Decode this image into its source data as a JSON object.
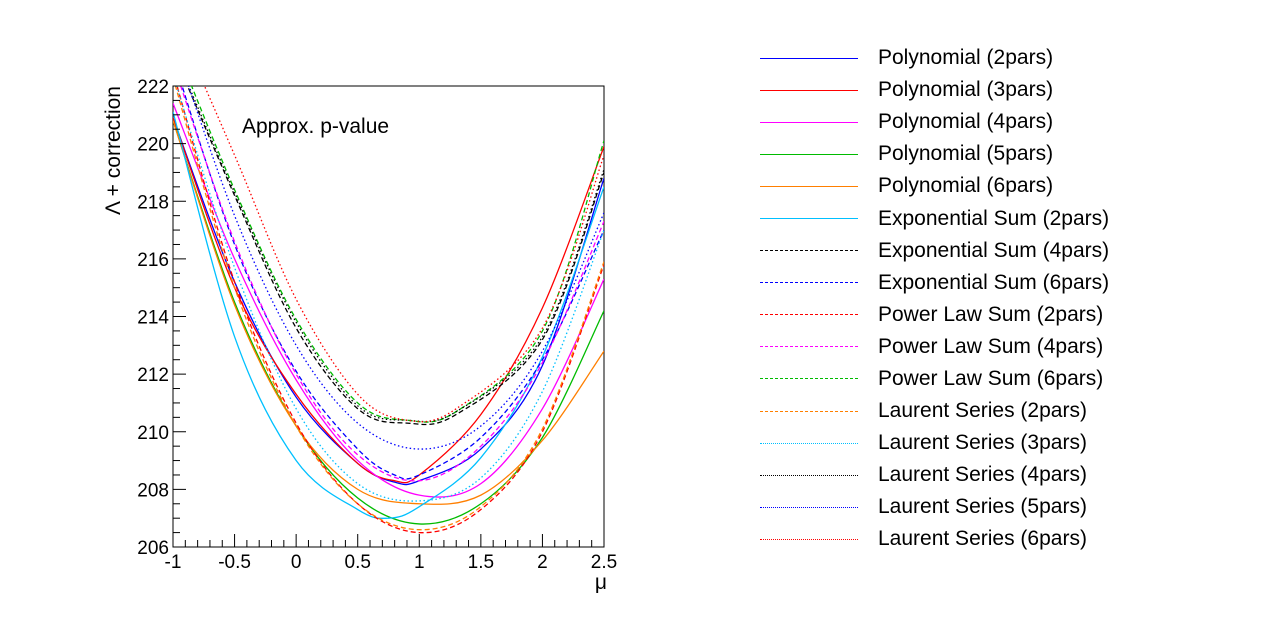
{
  "chart_data": {
    "type": "line",
    "title": "",
    "annotation": "Approx. p-value",
    "xlabel": "μ",
    "ylabel": "Λ + correction",
    "xlim": [
      -1,
      2.5
    ],
    "ylim": [
      206,
      222
    ],
    "x_ticks": [
      -1,
      -0.5,
      0,
      0.5,
      1,
      1.5,
      2,
      2.5
    ],
    "x_tick_labels": [
      "-1",
      "-0.5",
      "0",
      "0.5",
      "1",
      "1.5",
      "2",
      "2.5"
    ],
    "y_ticks": [
      206,
      208,
      210,
      212,
      214,
      216,
      218,
      220,
      222
    ],
    "y_tick_labels": [
      "206",
      "208",
      "210",
      "212",
      "214",
      "216",
      "218",
      "220",
      "222"
    ],
    "grid": false,
    "legend_position": "right",
    "series": [
      {
        "name": "Polynomial (2pars)",
        "color": "#0000ff",
        "style": "solid",
        "x": [
          -1,
          -0.5,
          0,
          0.5,
          0.8,
          1,
          1.5,
          2,
          2.5
        ],
        "y": [
          220.9,
          215.2,
          211.2,
          208.9,
          208.25,
          208.3,
          209.4,
          212.3,
          218.8
        ]
      },
      {
        "name": "Polynomial (3pars)",
        "color": "#ff0000",
        "style": "solid",
        "x": [
          -1,
          -0.5,
          0,
          0.5,
          0.8,
          1,
          1.5,
          2,
          2.5
        ],
        "y": [
          220.9,
          215.0,
          211.3,
          208.9,
          208.3,
          208.5,
          210.6,
          214.3,
          219.9
        ]
      },
      {
        "name": "Polynomial (4pars)",
        "color": "#ff00ff",
        "style": "solid",
        "x": [
          -1,
          -0.5,
          0,
          0.5,
          1,
          1.5,
          2,
          2.5
        ],
        "y": [
          221.4,
          216.0,
          211.8,
          209.0,
          207.8,
          208.2,
          210.8,
          215.3
        ]
      },
      {
        "name": "Polynomial (5pars)",
        "color": "#00bb00",
        "style": "solid",
        "x": [
          -1,
          -0.5,
          0,
          0.5,
          1,
          1.5,
          2,
          2.5
        ],
        "y": [
          220.8,
          214.5,
          210.2,
          207.7,
          206.8,
          207.5,
          209.8,
          214.2
        ]
      },
      {
        "name": "Polynomial (6pars)",
        "color": "#ff7f00",
        "style": "solid",
        "x": [
          -1,
          -0.5,
          0,
          0.5,
          1,
          1.5,
          2,
          2.5
        ],
        "y": [
          220.8,
          214.4,
          210.2,
          208.0,
          207.5,
          207.8,
          209.7,
          212.8
        ]
      },
      {
        "name": "Exponential Sum (2pars)",
        "color": "#00c0ff",
        "style": "solid",
        "x": [
          -1,
          -0.5,
          0,
          0.5,
          0.75,
          1,
          1.5,
          2,
          2.5
        ],
        "y": [
          221.1,
          213.3,
          209.0,
          207.3,
          207.0,
          207.4,
          209.1,
          212.6,
          218.5
        ]
      },
      {
        "name": "Exponential Sum (4pars)",
        "color": "#000000",
        "style": "dashed",
        "x": [
          -1,
          -0.5,
          0,
          0.5,
          0.9,
          1.3,
          2,
          2.5
        ],
        "y": [
          223.2,
          218.2,
          213.6,
          210.8,
          210.3,
          210.6,
          213.2,
          219.0
        ]
      },
      {
        "name": "Exponential Sum (6pars)",
        "color": "#0000ff",
        "style": "dashed",
        "x": [
          -1,
          -0.5,
          0,
          0.5,
          0.8,
          1,
          1.5,
          2,
          2.5
        ],
        "y": [
          223.0,
          216.5,
          212.1,
          209.4,
          208.5,
          208.5,
          209.8,
          212.5,
          217.0
        ]
      },
      {
        "name": "Power Law Sum (2pars)",
        "color": "#ff0000",
        "style": "dashed",
        "x": [
          -1,
          -0.5,
          0,
          0.5,
          1,
          1.5,
          2,
          2.5
        ],
        "y": [
          222.5,
          215.2,
          210.3,
          207.5,
          206.5,
          207.3,
          210.0,
          215.8
        ]
      },
      {
        "name": "Power Law Sum (4pars)",
        "color": "#ff00ff",
        "style": "dashed",
        "x": [
          -1,
          -0.5,
          0,
          0.5,
          1,
          1.5,
          2,
          2.5
        ],
        "y": [
          222.8,
          216.6,
          212.0,
          209.2,
          208.3,
          209.5,
          212.4,
          217.3
        ]
      },
      {
        "name": "Power Law Sum (6pars)",
        "color": "#00bb00",
        "style": "dashed",
        "x": [
          -1,
          -0.5,
          0,
          0.5,
          0.9,
          1.3,
          2,
          2.5
        ],
        "y": [
          223.6,
          218.4,
          213.9,
          211.0,
          210.4,
          210.7,
          213.5,
          220.1
        ]
      },
      {
        "name": "Laurent Series (2pars)",
        "color": "#ff7f00",
        "style": "dashed",
        "x": [
          -1,
          -0.5,
          0,
          0.5,
          1,
          1.5,
          2,
          2.5
        ],
        "y": [
          222.3,
          215.0,
          210.2,
          207.5,
          206.6,
          207.4,
          210.1,
          215.9
        ]
      },
      {
        "name": "Laurent Series (3pars)",
        "color": "#00c0ff",
        "style": "dotted",
        "x": [
          -1,
          -0.5,
          0,
          0.5,
          1,
          1.5,
          2,
          2.5
        ],
        "y": [
          222.4,
          215.7,
          210.8,
          208.2,
          207.6,
          208.4,
          211.4,
          217.0
        ]
      },
      {
        "name": "Laurent Series (4pars)",
        "color": "#000000",
        "style": "dotted",
        "x": [
          -1,
          -0.5,
          0,
          0.5,
          0.9,
          1.3,
          2,
          2.5
        ],
        "y": [
          223.3,
          218.3,
          213.8,
          210.9,
          210.4,
          210.7,
          213.3,
          219.1
        ]
      },
      {
        "name": "Laurent Series (5pars)",
        "color": "#0000ff",
        "style": "dotted",
        "x": [
          -1,
          -0.5,
          0,
          0.5,
          1,
          1.5,
          2,
          2.5
        ],
        "y": [
          223.6,
          217.5,
          213.0,
          210.3,
          209.4,
          210.2,
          212.8,
          217.6
        ]
      },
      {
        "name": "Laurent Series (6pars)",
        "color": "#ff0000",
        "style": "dotted",
        "x": [
          -1,
          -0.5,
          0,
          0.5,
          0.9,
          1.3,
          2,
          2.5
        ],
        "y": [
          224.5,
          219.6,
          214.6,
          211.3,
          210.4,
          210.8,
          213.6,
          219.6
        ]
      }
    ]
  }
}
